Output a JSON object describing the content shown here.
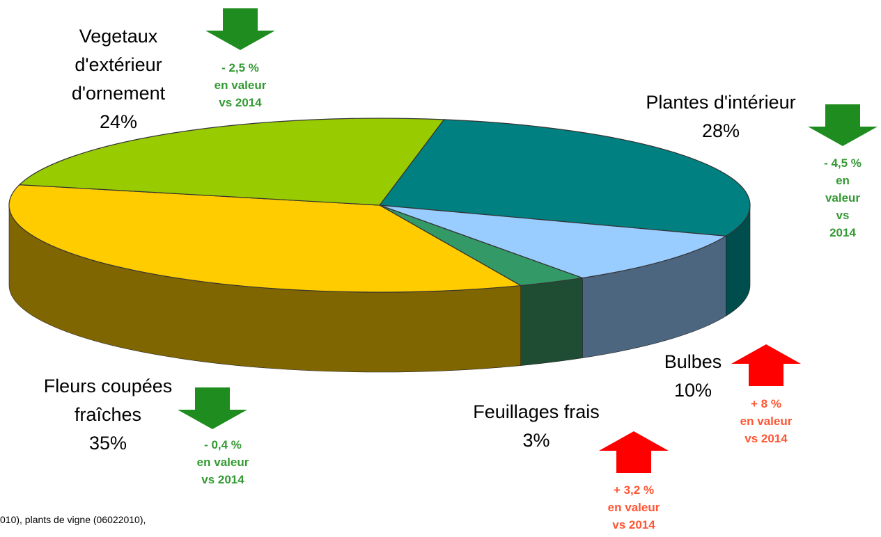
{
  "chart_data": {
    "type": "pie3d",
    "categories": [
      "Plantes d'intérieur",
      "Bulbes",
      "Feuillages frais",
      "Fleurs coupées\nfraîches",
      "Vegetaux\nd'extérieur\nd'ornement"
    ],
    "values": [
      28,
      10,
      3,
      35,
      24
    ],
    "value_labels": [
      "28%",
      "10%",
      "3%",
      "35%",
      "24%"
    ],
    "colors": [
      "#008080",
      "#99ccff",
      "#339966",
      "#ffcc00",
      "#99cc00"
    ],
    "side_colors": [
      "#004d4d",
      "#4d6680",
      "#1f4d33",
      "#806600",
      "#4d6600"
    ],
    "annotations": [
      {
        "text": "- 4,5 %\nen valeur\nvs 2014",
        "direction": "down",
        "color": "#339933",
        "arrow_color": "#1e8c1e"
      },
      {
        "text": "+ 8 %\nen valeur\nvs 2014",
        "direction": "up",
        "color": "#ff5533",
        "arrow_color": "#ff0000"
      },
      {
        "text": "+ 3,2 %\nen valeur\nvs 2014",
        "direction": "up",
        "color": "#ff5533",
        "arrow_color": "#ff0000"
      },
      {
        "text": "- 0,4 %\nen valeur\nvs 2014",
        "direction": "down",
        "color": "#339933",
        "arrow_color": "#1e8c1e"
      },
      {
        "text": "- 2,5 %\nen valeur\nvs 2014",
        "direction": "down",
        "color": "#339933",
        "arrow_color": "#1e8c1e"
      }
    ],
    "footnote": "010), plants de vigne (06022010),"
  }
}
